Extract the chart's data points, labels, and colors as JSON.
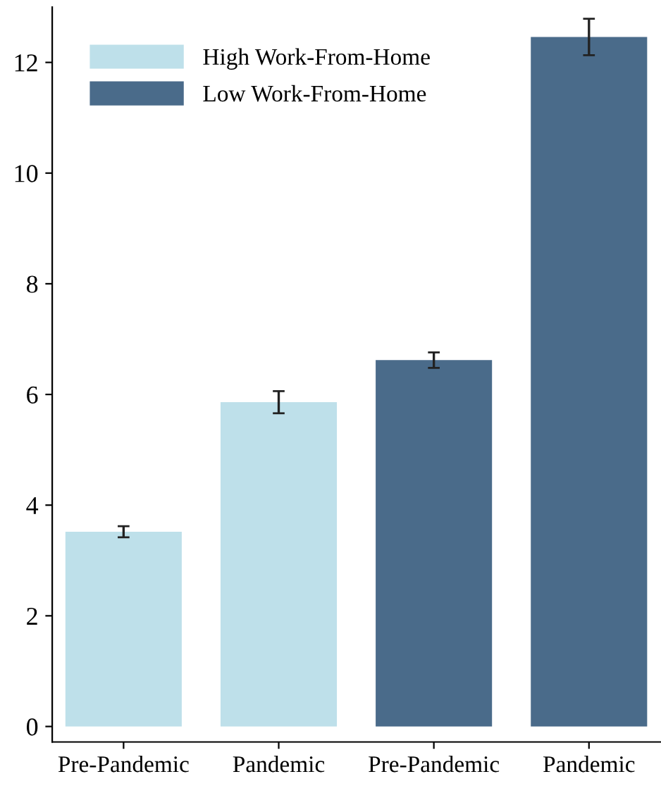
{
  "chart_data": {
    "type": "bar",
    "categories": [
      "Pre-Pandemic",
      "Pandemic",
      "Pre-Pandemic",
      "Pandemic"
    ],
    "series": [
      {
        "name": "High Work-From-Home",
        "color": "#bee0ea",
        "values": [
          3.52,
          5.86,
          null,
          null
        ],
        "errors": [
          0.1,
          0.2,
          null,
          null
        ]
      },
      {
        "name": "Low Work-From-Home",
        "color": "#4a6b8a",
        "values": [
          null,
          null,
          6.62,
          12.46
        ],
        "errors": [
          null,
          null,
          0.14,
          0.33
        ]
      }
    ],
    "ylim": [
      -0.28,
      13.0
    ],
    "yticks": [
      0,
      2,
      4,
      6,
      8,
      10,
      12
    ],
    "grid": false,
    "legend": "top left"
  }
}
